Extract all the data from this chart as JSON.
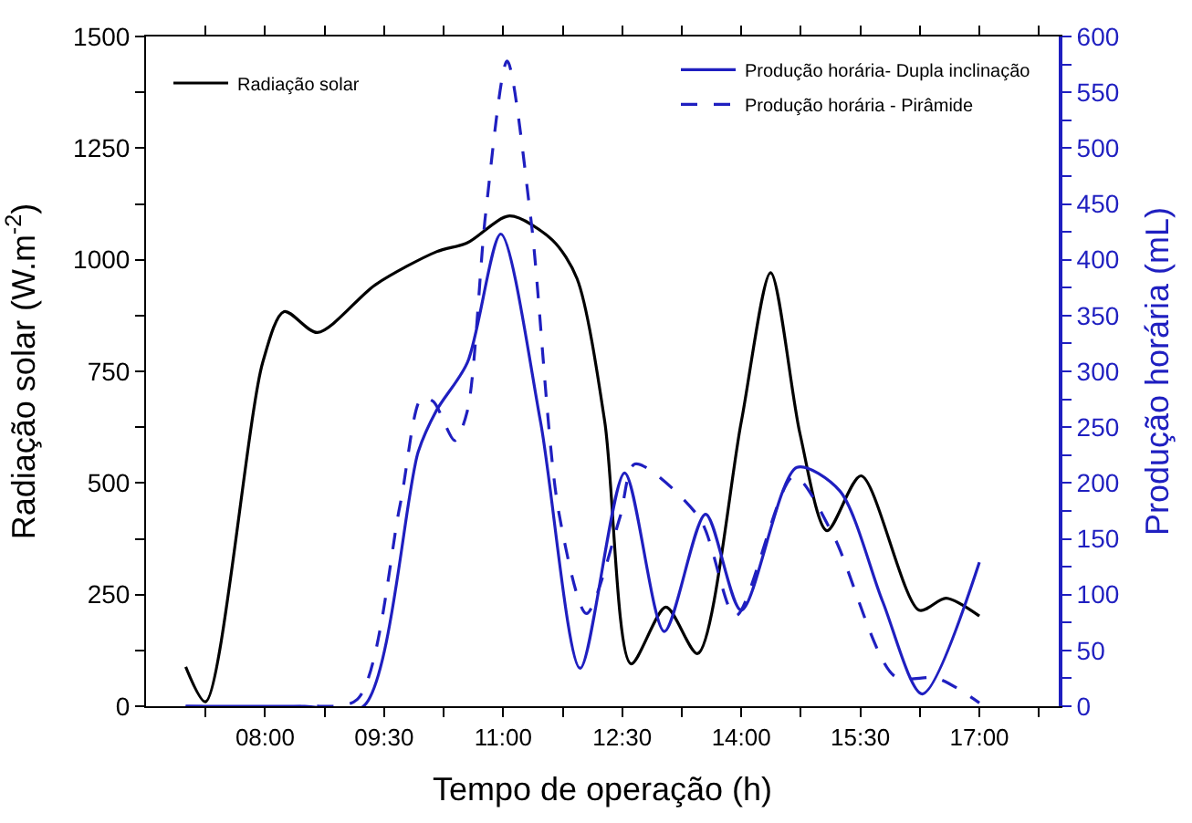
{
  "chart_data": {
    "type": "line",
    "xlabel": "Tempo de operação (h)",
    "ylabel": "Radiação solar (W.m$^{-2}$)",
    "y2label": "Produção horária (mL)",
    "xlim": [
      6.5,
      18
    ],
    "ylim": [
      0,
      1500
    ],
    "y2lim": [
      0,
      600
    ],
    "xticks": [
      {
        "value": 7.25,
        "label": null
      },
      {
        "value": 8,
        "label": "08:00"
      },
      {
        "value": 8.75,
        "label": null
      },
      {
        "value": 9.5,
        "label": "09:30"
      },
      {
        "value": 10.25,
        "label": null
      },
      {
        "value": 11,
        "label": "11:00"
      },
      {
        "value": 11.75,
        "label": null
      },
      {
        "value": 12.5,
        "label": "12:30"
      },
      {
        "value": 13.25,
        "label": null
      },
      {
        "value": 14,
        "label": "14:00"
      },
      {
        "value": 14.75,
        "label": null
      },
      {
        "value": 15.5,
        "label": "15:30"
      },
      {
        "value": 16.25,
        "label": null
      },
      {
        "value": 17,
        "label": "17:00"
      },
      {
        "value": 17.75,
        "label": null
      }
    ],
    "yticks": [
      0,
      {
        "value": 125,
        "label": null
      },
      250,
      {
        "value": 375,
        "label": null
      },
      500,
      {
        "value": 625,
        "label": null
      },
      750,
      {
        "value": 875,
        "label": null
      },
      1000,
      {
        "value": 1125,
        "label": null
      },
      1250,
      {
        "value": 1375,
        "label": null
      },
      1500
    ],
    "y2ticks": [
      0,
      {
        "value": 25,
        "label": null
      },
      50,
      {
        "value": 75,
        "label": null
      },
      100,
      {
        "value": 125,
        "label": null
      },
      150,
      {
        "value": 175,
        "label": null
      },
      200,
      {
        "value": 225,
        "label": null
      },
      250,
      {
        "value": 275,
        "label": null
      },
      300,
      {
        "value": 325,
        "label": null
      },
      350,
      {
        "value": 375,
        "label": null
      },
      400,
      {
        "value": 425,
        "label": null
      },
      450,
      {
        "value": 475,
        "label": null
      },
      500,
      {
        "value": 525,
        "label": null
      },
      550,
      {
        "value": 575,
        "label": null
      },
      600
    ],
    "legend": "top",
    "marker": "none",
    "series": [
      {
        "name": "Radiação solar",
        "color": "#000000",
        "line_style": "solid",
        "x": [
          7.0,
          7.25,
          7.97,
          8.24,
          8.66,
          9.39,
          10.16,
          10.55,
          11.08,
          11.62,
          11.93,
          12.28,
          12.61,
          13.05,
          13.45,
          14.0,
          14.37,
          14.74,
          15.08,
          15.51,
          16.24,
          16.58,
          17.0
        ],
        "values": [
          88,
          10,
          770,
          884,
          837,
          944,
          1018,
          1038,
          1098,
          1044,
          958,
          637,
          95,
          222,
          118,
          637,
          971,
          610,
          393,
          516,
          215,
          242,
          202
        ]
      },
      {
        "name": "Produção horária- Dupla inclinação",
        "color": "#1f1fc0",
        "axis": "y2",
        "line_style": "solid",
        "x": [
          7.0,
          8.5,
          9.24,
          9.93,
          10.16,
          10.55,
          10.97,
          11.47,
          11.97,
          12.53,
          13.03,
          13.55,
          14.0,
          14.7,
          15.24,
          15.78,
          16.28,
          17.0
        ],
        "values": [
          0,
          0,
          0,
          228,
          265,
          308,
          423,
          255,
          34,
          209,
          67,
          172,
          86,
          214,
          193,
          94,
          11,
          129
        ]
      },
      {
        "name": "Produção horária - Pirâmide",
        "color": "#1f1fc0",
        "axis": "y2",
        "line_style": "dashed",
        "x": [
          7.0,
          8.5,
          9.16,
          9.7,
          9.97,
          10.12,
          10.39,
          10.55,
          10.78,
          11.05,
          11.35,
          11.7,
          12.05,
          12.47,
          12.66,
          13.47,
          13.93,
          14.66,
          15.16,
          15.93,
          16.47,
          17.0
        ],
        "values": [
          0,
          0,
          6,
          180,
          276,
          273,
          238,
          265,
          442,
          578,
          436,
          174,
          83,
          169,
          217,
          169,
          81,
          206,
          153,
          27,
          25,
          3
        ]
      }
    ]
  }
}
